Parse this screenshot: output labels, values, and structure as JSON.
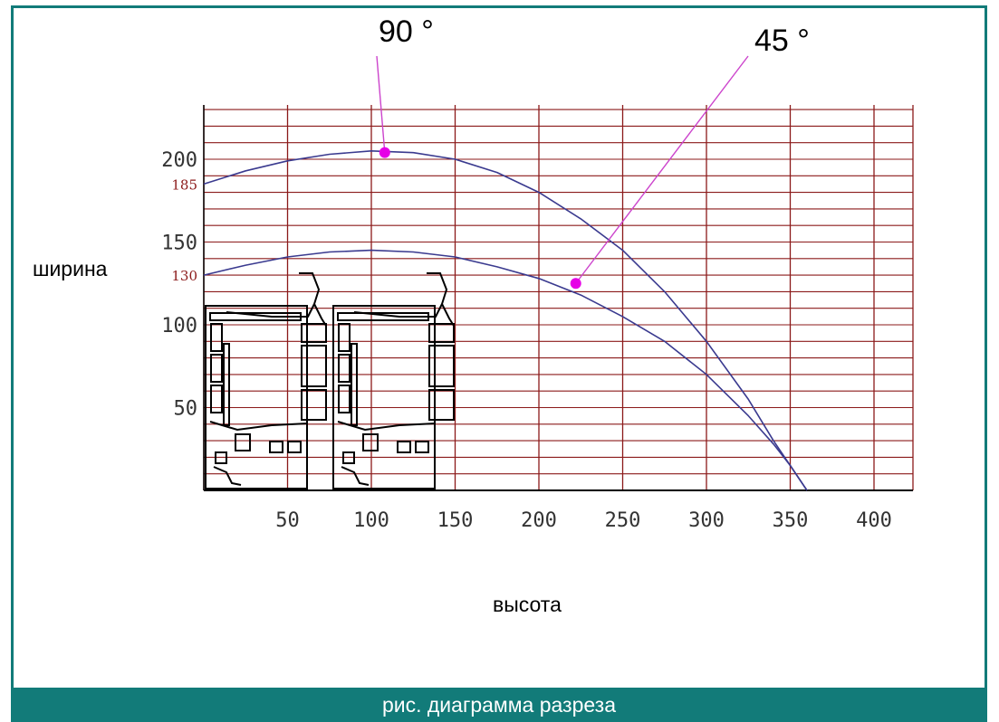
{
  "caption": "рис. диаграмма разреза",
  "chart_data": {
    "type": "line",
    "xlabel": "высота",
    "ylabel": "ширина",
    "xlim": [
      0,
      425
    ],
    "ylim": [
      0,
      235
    ],
    "grid": true,
    "x_ticks": [
      50,
      100,
      150,
      200,
      250,
      300,
      350,
      400
    ],
    "y_ticks": [
      50,
      100,
      150,
      200
    ],
    "y_marked_values": [
      185,
      130
    ],
    "series": [
      {
        "name": "90 °",
        "x": [
          0,
          25,
          50,
          75,
          100,
          125,
          150,
          175,
          200,
          225,
          250,
          275,
          300,
          325,
          340,
          350,
          360
        ],
        "y": [
          185,
          193,
          199,
          203,
          205,
          204,
          200,
          192,
          180,
          164,
          145,
          120,
          90,
          55,
          30,
          15,
          0
        ]
      },
      {
        "name": "45 °",
        "x": [
          0,
          25,
          50,
          75,
          100,
          125,
          150,
          175,
          200,
          225,
          250,
          275,
          300,
          325,
          340,
          350,
          360
        ],
        "y": [
          130,
          136,
          141,
          144,
          145,
          144,
          141,
          135,
          128,
          118,
          105,
          90,
          70,
          45,
          28,
          15,
          0
        ]
      }
    ],
    "annotations": [
      {
        "text": "90 °",
        "x": 108,
        "y": 204
      },
      {
        "text": "45 °",
        "x": 222,
        "y": 125
      }
    ],
    "colors": {
      "grid": "#8b1a1a",
      "curve": "#3a3a8f",
      "marker": "#e600e6",
      "leader": "#cc44cc",
      "secondary_label": "#8b1a1a"
    }
  }
}
